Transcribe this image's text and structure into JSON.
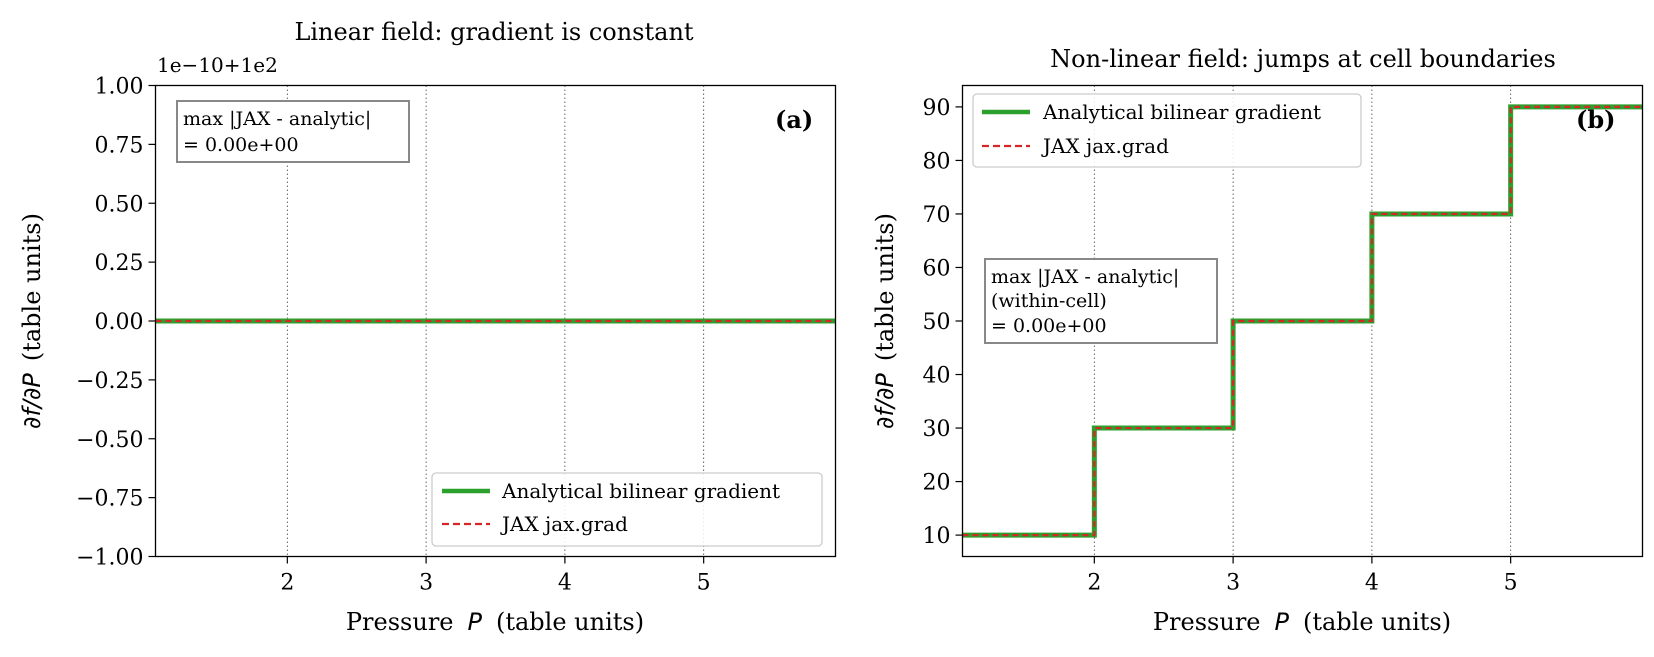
{
  "chart_data": [
    {
      "type": "line",
      "title": "Linear field: gradient is constant",
      "offset_text": "1e−10+1e2",
      "xlabel_pre": "Pressure",
      "xlabel_sym": "P",
      "xlabel_post": "(table units)",
      "ylabel_sym": "∂f/∂P",
      "ylabel_post": "(table units)",
      "xlim": [
        1.05,
        5.95
      ],
      "ylim": [
        -1.0,
        1.0
      ],
      "xticks": [
        2,
        3,
        4,
        5
      ],
      "xtick_labels": [
        "2",
        "3",
        "4",
        "5"
      ],
      "yticks": [
        1.0,
        0.75,
        0.5,
        0.25,
        0.0,
        -0.25,
        -0.5,
        -0.75,
        -1.0
      ],
      "ytick_labels": [
        "1.00",
        "0.75",
        "0.50",
        "0.25",
        "0.00",
        "−0.25",
        "−0.50",
        "−0.75",
        "−1.00"
      ],
      "grid": "x-dotted",
      "legend_position": "lower right",
      "panel_label": "(a)",
      "annotation": [
        "max |JAX - analytic|",
        "= 0.00e+00"
      ],
      "series": [
        {
          "name": "Analytical bilinear gradient",
          "color": "#2ca02c",
          "style": "solid",
          "x": [
            1.05,
            5.95
          ],
          "y": [
            0.0,
            0.0
          ]
        },
        {
          "name": "JAX jax.grad",
          "color": "#d62728",
          "style": "dashed",
          "x": [
            1.05,
            5.95
          ],
          "y": [
            0.0,
            0.0
          ]
        }
      ]
    },
    {
      "type": "line",
      "title": "Non-linear field: jumps at cell boundaries",
      "xlabel_pre": "Pressure",
      "xlabel_sym": "P",
      "xlabel_post": "(table units)",
      "ylabel_sym": "∂f/∂P",
      "ylabel_post": "(table units)",
      "xlim": [
        1.05,
        5.95
      ],
      "ylim": [
        6,
        94
      ],
      "xticks": [
        2,
        3,
        4,
        5
      ],
      "xtick_labels": [
        "2",
        "3",
        "4",
        "5"
      ],
      "yticks": [
        10,
        20,
        30,
        40,
        50,
        60,
        70,
        80,
        90
      ],
      "ytick_labels": [
        "10",
        "20",
        "30",
        "40",
        "50",
        "60",
        "70",
        "80",
        "90"
      ],
      "grid": "x-dotted",
      "legend_position": "upper left",
      "panel_label": "(b)",
      "annotation": [
        "max |JAX - analytic|",
        "(within-cell)",
        "= 0.00e+00"
      ],
      "series": [
        {
          "name": "Analytical bilinear gradient",
          "color": "#2ca02c",
          "style": "solid",
          "x": [
            1.05,
            2,
            2,
            3,
            3,
            4,
            4,
            5,
            5,
            5.95
          ],
          "y": [
            10,
            10,
            30,
            30,
            50,
            50,
            70,
            70,
            90,
            90
          ]
        },
        {
          "name": "JAX jax.grad",
          "color": "#d62728",
          "style": "dashed",
          "x": [
            1.05,
            2,
            2,
            3,
            3,
            4,
            4,
            5,
            5,
            5.95
          ],
          "y": [
            10,
            10,
            30,
            30,
            50,
            50,
            70,
            70,
            90,
            90
          ]
        }
      ]
    }
  ]
}
